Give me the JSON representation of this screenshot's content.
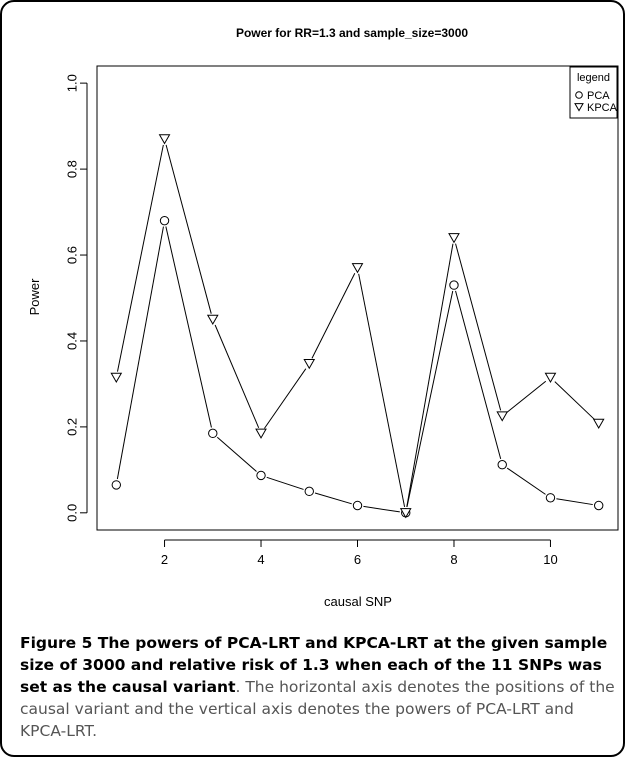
{
  "chart_data": {
    "type": "line",
    "title": "Power for RR=1.3 and sample_size=3000",
    "xlabel": "causal SNP",
    "ylabel": "Power",
    "xlim": [
      0.6,
      11.4
    ],
    "ylim": [
      -0.04,
      1.04
    ],
    "xticks": [
      2,
      4,
      6,
      8,
      10
    ],
    "yticks": [
      0.0,
      0.2,
      0.4,
      0.6,
      0.8,
      1.0
    ],
    "ytick_labels": [
      "0.0",
      "0.2",
      "0.4",
      "0.6",
      "0.8",
      "1.0"
    ],
    "x": [
      1,
      2,
      3,
      4,
      5,
      6,
      7,
      8,
      9,
      10,
      11
    ],
    "series": [
      {
        "name": "PCA",
        "marker": "circle",
        "values": [
          0.065,
          0.68,
          0.185,
          0.087,
          0.05,
          0.017,
          0.0,
          0.53,
          0.112,
          0.035,
          0.017
        ]
      },
      {
        "name": "KPCA",
        "marker": "triangle-down",
        "values": [
          0.315,
          0.87,
          0.45,
          0.185,
          0.347,
          0.57,
          0.0,
          0.64,
          0.225,
          0.315,
          0.208
        ]
      }
    ],
    "legend": {
      "title": "legend",
      "position": "top-right"
    },
    "grid": false
  },
  "caption": {
    "bold": "Figure 5 The powers of PCA-LRT and KPCA-LRT at the given sample size of 3000 and relative risk of 1.3 when each of the 11 SNPs was set as the causal variant",
    "body": ". The horizontal axis denotes the positions of the causal variant and the vertical axis denotes the powers of PCA-LRT and KPCA-LRT."
  }
}
